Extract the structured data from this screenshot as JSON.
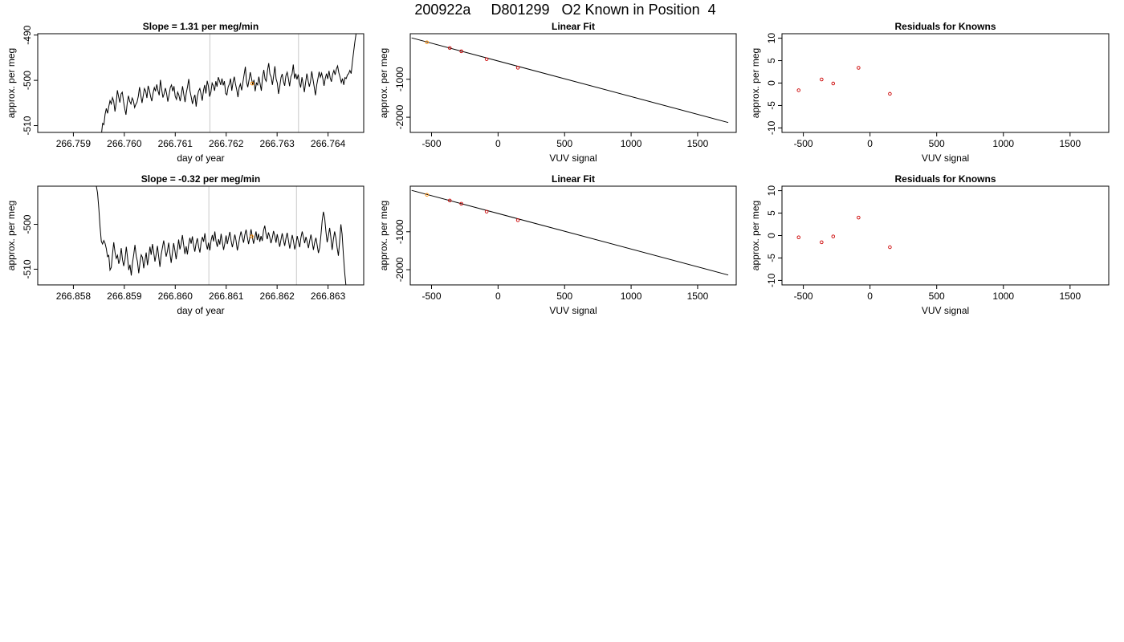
{
  "page_title": "200922a     D801299   O2 Known in Position  4",
  "colors": {
    "axis": "#000000",
    "line": "#000000",
    "marker_known": "#cc0000",
    "marker_highlight": "#ff8c00",
    "vline": "#c8c8c8"
  },
  "chart_data": [
    {
      "id": "ts1",
      "type": "line",
      "title": "Slope =  1.31  per meg/min",
      "xlabel": "day of year",
      "ylabel": "approx. per meg",
      "xlim": [
        266.7583,
        266.7647
      ],
      "ylim": [
        -511.5,
        -489.7
      ],
      "xticks": [
        "266.759",
        "266.760",
        "266.761",
        "266.762",
        "266.763",
        "266.764"
      ],
      "yticks": [
        "-490",
        "-500",
        "-510"
      ],
      "vlines": [
        266.76168,
        266.76342
      ],
      "highlight_point": {
        "x": 266.76251,
        "y": -500.7
      },
      "x_start": 266.75955,
      "x_end": 266.76455,
      "y": [
        -512,
        -509.5,
        -509.8,
        -507.5,
        -506.2,
        -507.3,
        -505.8,
        -504.5,
        -505.2,
        -503.8,
        -504.6,
        -506.9,
        -505.0,
        -502.2,
        -503.6,
        -504.9,
        -503.0,
        -502.6,
        -504.7,
        -506.3,
        -507.6,
        -505.0,
        -503.4,
        -504.6,
        -505.2,
        -503.9,
        -504.5,
        -506.0,
        -505.3,
        -504.8,
        -503.5,
        -501.5,
        -503.2,
        -505.0,
        -503.4,
        -501.8,
        -502.4,
        -503.9,
        -501.2,
        -502.2,
        -503.6,
        -504.6,
        -502.8,
        -501.6,
        -502.4,
        -500.9,
        -502.3,
        -503.3,
        -499.9,
        -502.0,
        -503.8,
        -503.0,
        -501.7,
        -502.9,
        -504.7,
        -503.2,
        -501.6,
        -501.0,
        -502.4,
        -501.3,
        -503.5,
        -504.2,
        -502.6,
        -503.3,
        -504.6,
        -503.1,
        -501.3,
        -503.2,
        -504.8,
        -502.8,
        -501.4,
        -499.7,
        -502.3,
        -503.7,
        -505.2,
        -504.0,
        -503.2,
        -505.8,
        -503.6,
        -502.4,
        -501.8,
        -503.0,
        -504.5,
        -502.2,
        -501.0,
        -502.9,
        -500.1,
        -501.3,
        -503.6,
        -502.6,
        -500.6,
        -501.2,
        -502.3,
        -500.2,
        -501.4,
        -499.3,
        -500.1,
        -501.0,
        -499.6,
        -501.1,
        -500.2,
        -502.9,
        -503.2,
        -501.5,
        -500.8,
        -499.6,
        -502.3,
        -500.4,
        -499.2,
        -500.8,
        -502.1,
        -503.7,
        -501.6,
        -500.8,
        -502.2,
        -500.5,
        -498.8,
        -497.0,
        -500.4,
        -501.5,
        -499.9,
        -498.2,
        -499.5,
        -501.0,
        -499.9,
        -502.4,
        -500.6,
        -501.0,
        -499.2,
        -500.8,
        -502.3,
        -499.3,
        -497.7,
        -499.7,
        -500.2,
        -497.8,
        -496.2,
        -498.6,
        -499.3,
        -501.0,
        -499.1,
        -496.9,
        -499.7,
        -500.6,
        -503.0,
        -501.3,
        -499.4,
        -498.6,
        -500.3,
        -501.2,
        -499.0,
        -498.2,
        -499.6,
        -501.3,
        -499.2,
        -498.6,
        -496.5,
        -499.6,
        -498.5,
        -499.8,
        -498.7,
        -500.5,
        -501.6,
        -499.3,
        -500.8,
        -502.6,
        -500.4,
        -498.5,
        -500.0,
        -501.4,
        -500.2,
        -498.0,
        -499.8,
        -501.5,
        -503.3,
        -501.0,
        -499.6,
        -498.1,
        -499.3,
        -498.4,
        -499.6,
        -501.2,
        -499.5,
        -498.5,
        -499.7,
        -497.9,
        -499.5,
        -500.3,
        -498.6,
        -497.8,
        -498.8,
        -497.5,
        -496.8,
        -498.3,
        -499.3,
        -500.5,
        -499.6,
        -501.0,
        -499.4,
        -499.6,
        -498.8,
        -498.5,
        -497.8,
        -498.5,
        -496.0,
        -493.8,
        -491.5,
        -489.7
      ]
    },
    {
      "id": "fit1",
      "type": "scatter",
      "title": "Linear Fit",
      "xlabel": "VUV signal",
      "ylabel": "approx. per meg",
      "xlim": [
        -660,
        1790
      ],
      "ylim": [
        -2400,
        200
      ],
      "xticks": [
        -500,
        0,
        500,
        1000,
        1500
      ],
      "yticks": [
        -1000,
        -2000
      ],
      "fit_line": {
        "x": [
          -650,
          1730
        ],
        "y": [
          90,
          -2140
        ]
      },
      "points": [
        {
          "x": -535,
          "y": -26,
          "color": "highlight"
        },
        {
          "x": -363,
          "y": -177,
          "color": "known"
        },
        {
          "x": -276,
          "y": -263,
          "color": "known"
        },
        {
          "x": -86,
          "y": -470,
          "color": "known"
        },
        {
          "x": 149,
          "y": -697,
          "color": "known"
        }
      ]
    },
    {
      "id": "res1",
      "type": "scatter",
      "title": "Residuals for Knowns",
      "xlabel": "VUV signal",
      "ylabel": "approx. per meg",
      "xlim": [
        -660,
        1790
      ],
      "ylim": [
        -11,
        11
      ],
      "xticks": [
        -500,
        0,
        500,
        1000,
        1500
      ],
      "yticks": [
        10,
        5,
        0,
        -5,
        -10
      ],
      "points": [
        {
          "x": -535,
          "y": -1.6
        },
        {
          "x": -363,
          "y": 0.8
        },
        {
          "x": -276,
          "y": -0.1
        },
        {
          "x": -86,
          "y": 3.4
        },
        {
          "x": 149,
          "y": -2.4
        }
      ]
    },
    {
      "id": "ts2",
      "type": "line",
      "title": "Slope =  -0.32  per meg/min",
      "xlabel": "day of year",
      "ylabel": "approx. per meg",
      "xlim": [
        266.8573,
        266.8637
      ],
      "ylim": [
        -513.5,
        -491.5
      ],
      "xticks": [
        "266.858",
        "266.859",
        "266.860",
        "266.861",
        "266.862",
        "266.863"
      ],
      "yticks": [
        "-500",
        "-510"
      ],
      "vlines": [
        266.86066,
        266.86238
      ],
      "highlight_point": {
        "x": 266.8615,
        "y": -502.7
      },
      "x_start": 266.85845,
      "x_end": 266.86335,
      "y": [
        -491.5,
        -493.0,
        -496.5,
        -500.5,
        -503.8,
        -504.4,
        -503.6,
        -504.2,
        -505.4,
        -507.2,
        -506.9,
        -510.2,
        -509.6,
        -506.5,
        -504.0,
        -506.3,
        -507.6,
        -506.9,
        -508.8,
        -507.7,
        -505.3,
        -507.9,
        -509.3,
        -507.8,
        -505.0,
        -507.3,
        -510.2,
        -509.0,
        -511.4,
        -508.6,
        -506.7,
        -504.6,
        -507.1,
        -508.3,
        -510.9,
        -508.5,
        -506.8,
        -507.4,
        -509.8,
        -508.0,
        -506.3,
        -509.1,
        -507.2,
        -505.0,
        -506.8,
        -504.4,
        -506.2,
        -508.3,
        -506.6,
        -504.8,
        -507.3,
        -509.5,
        -506.7,
        -505.2,
        -503.6,
        -505.4,
        -507.2,
        -506.0,
        -504.1,
        -506.5,
        -508.6,
        -506.3,
        -504.2,
        -505.9,
        -507.8,
        -505.6,
        -503.4,
        -505.6,
        -504.4,
        -502.4,
        -504.5,
        -506.6,
        -504.9,
        -506.7,
        -504.5,
        -503.0,
        -504.3,
        -502.7,
        -504.8,
        -506.1,
        -504.2,
        -503.1,
        -505.0,
        -506.3,
        -504.0,
        -502.8,
        -503.9,
        -502.0,
        -504.2,
        -505.6,
        -504.1,
        -505.8,
        -503.6,
        -502.4,
        -503.8,
        -501.6,
        -503.9,
        -505.0,
        -503.3,
        -504.5,
        -502.1,
        -503.9,
        -505.7,
        -504.3,
        -502.5,
        -504.4,
        -503.0,
        -501.7,
        -503.6,
        -505.1,
        -503.8,
        -502.3,
        -503.6,
        -505.8,
        -504.5,
        -502.8,
        -501.6,
        -502.9,
        -504.1,
        -502.4,
        -501.2,
        -502.8,
        -504.4,
        -503.0,
        -501.1,
        -502.7,
        -504.3,
        -503.0,
        -501.6,
        -503.5,
        -502.1,
        -503.9,
        -502.6,
        -503.7,
        -501.4,
        -500.3,
        -502.1,
        -503.3,
        -501.8,
        -502.8,
        -504.2,
        -503.1,
        -501.5,
        -502.5,
        -504.1,
        -502.2,
        -503.7,
        -505.0,
        -503.4,
        -502.0,
        -503.5,
        -504.8,
        -503.1,
        -501.9,
        -503.6,
        -505.4,
        -503.9,
        -502.4,
        -503.7,
        -505.6,
        -504.5,
        -502.6,
        -503.9,
        -505.1,
        -503.0,
        -501.6,
        -502.9,
        -504.2,
        -502.8,
        -503.9,
        -505.3,
        -503.7,
        -502.3,
        -503.8,
        -505.7,
        -504.1,
        -503.0,
        -504.6,
        -506.4,
        -505.2,
        -502.5,
        -499.2,
        -497.2,
        -498.6,
        -501.5,
        -504.0,
        -502.6,
        -500.8,
        -502.9,
        -505.7,
        -503.3,
        -501.6,
        -503.1,
        -505.2,
        -507.0,
        -503.9,
        -500.0,
        -502.2,
        -506.7,
        -510.5,
        -513.5
      ]
    },
    {
      "id": "fit2",
      "type": "scatter",
      "title": "Linear Fit",
      "xlabel": "VUV signal",
      "ylabel": "approx. per meg",
      "xlim": [
        -660,
        1790
      ],
      "ylim": [
        -2400,
        200
      ],
      "xticks": [
        -500,
        0,
        500,
        1000,
        1500
      ],
      "yticks": [
        -1000,
        -2000
      ],
      "fit_line": {
        "x": [
          -650,
          1730
        ],
        "y": [
          90,
          -2140
        ]
      },
      "points": [
        {
          "x": -535,
          "y": -26,
          "color": "highlight"
        },
        {
          "x": -363,
          "y": -177,
          "color": "known"
        },
        {
          "x": -276,
          "y": -263,
          "color": "known"
        },
        {
          "x": -86,
          "y": -470,
          "color": "known"
        },
        {
          "x": 149,
          "y": -697,
          "color": "known"
        }
      ]
    },
    {
      "id": "res2",
      "type": "scatter",
      "title": "Residuals for Knowns",
      "xlabel": "VUV signal",
      "ylabel": "approx. per meg",
      "xlim": [
        -660,
        1790
      ],
      "ylim": [
        -11,
        11
      ],
      "xticks": [
        -500,
        0,
        500,
        1000,
        1500
      ],
      "yticks": [
        10,
        5,
        0,
        -5,
        -10
      ],
      "points": [
        {
          "x": -535,
          "y": -0.4
        },
        {
          "x": -363,
          "y": -1.5
        },
        {
          "x": -276,
          "y": -0.2
        },
        {
          "x": -86,
          "y": 4.0
        },
        {
          "x": 149,
          "y": -2.6
        }
      ]
    }
  ]
}
